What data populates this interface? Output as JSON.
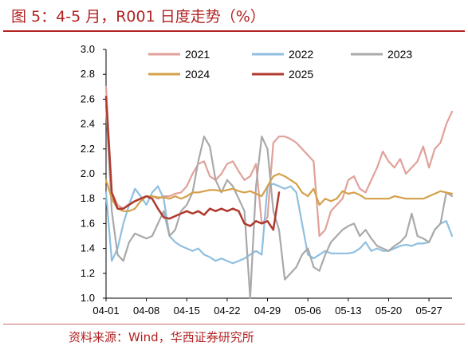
{
  "header": {
    "title": "图 5：4-5 月，R001 日度走势（%）"
  },
  "footer": {
    "source": "资料来源：Wind，华西证券研究所"
  },
  "chart_data": {
    "type": "line",
    "title": "图 5：4-5 月，R001 日度走势（%）",
    "ylim": [
      1.0,
      3.0
    ],
    "yticks": [
      "1.0",
      "1.2",
      "1.4",
      "1.6",
      "1.8",
      "2.0",
      "2.2",
      "2.4",
      "2.6",
      "2.8",
      "3.0"
    ],
    "xticks": [
      "04-01",
      "04-08",
      "04-15",
      "04-22",
      "04-29",
      "05-06",
      "05-13",
      "05-20",
      "05-27"
    ],
    "legend_placement": "top",
    "series": [
      {
        "name": "2021",
        "color": "#e1a19a",
        "x": [
          0,
          1,
          2,
          3,
          4,
          5,
          6,
          7,
          8,
          9,
          10,
          11,
          12,
          13,
          14,
          15,
          16,
          17,
          18,
          19,
          20,
          21,
          22,
          23,
          24,
          25,
          26,
          27,
          28,
          29,
          30,
          31,
          32,
          33,
          34,
          35,
          36,
          37,
          38,
          39,
          40,
          41,
          42,
          43,
          44,
          45,
          46,
          47,
          48,
          49,
          50,
          51,
          52,
          53,
          54,
          55,
          56,
          57,
          58,
          59,
          60
        ],
        "y": [
          2.7,
          1.85,
          1.75,
          1.72,
          1.76,
          1.78,
          1.8,
          1.82,
          1.82,
          1.8,
          1.82,
          1.82,
          1.84,
          1.85,
          1.9,
          2.0,
          2.08,
          2.1,
          1.98,
          1.95,
          2.0,
          2.08,
          2.1,
          2.02,
          1.95,
          1.98,
          2.08,
          1.6,
          1.65,
          2.25,
          2.3,
          2.3,
          2.28,
          2.25,
          2.2,
          2.15,
          2.1,
          1.5,
          1.55,
          1.7,
          1.75,
          1.8,
          1.95,
          1.98,
          1.88,
          1.85,
          1.95,
          2.05,
          2.18,
          2.1,
          2.05,
          2.12,
          2.0,
          2.05,
          2.1,
          2.22,
          2.05,
          2.2,
          2.25,
          2.4,
          2.5
        ]
      },
      {
        "name": "2022",
        "color": "#8fbfe0",
        "x": [
          0,
          1,
          2,
          3,
          4,
          5,
          6,
          7,
          8,
          9,
          10,
          11,
          12,
          13,
          14,
          15,
          16,
          17,
          18,
          19,
          20,
          21,
          22,
          23,
          24,
          25,
          26,
          27,
          28,
          29,
          30,
          31,
          32,
          33,
          34,
          35,
          36,
          37,
          38,
          39,
          40,
          41,
          42,
          43,
          44,
          45,
          46,
          47,
          48,
          49,
          50,
          51,
          52,
          53,
          54,
          55,
          56,
          57,
          58,
          59,
          60
        ],
        "y": [
          1.85,
          1.3,
          1.4,
          1.6,
          1.75,
          1.88,
          1.82,
          1.75,
          1.85,
          1.9,
          1.8,
          1.5,
          1.45,
          1.42,
          1.4,
          1.38,
          1.4,
          1.35,
          1.33,
          1.3,
          1.32,
          1.3,
          1.28,
          1.3,
          1.32,
          1.35,
          1.38,
          1.35,
          1.9,
          1.92,
          1.9,
          1.88,
          1.9,
          1.85,
          1.6,
          1.35,
          1.32,
          1.35,
          1.38,
          1.36,
          1.36,
          1.36,
          1.36,
          1.37,
          1.4,
          1.45,
          1.38,
          1.4,
          1.38,
          1.38,
          1.4,
          1.42,
          1.43,
          1.42,
          1.44,
          1.44,
          1.45,
          1.55,
          1.6,
          1.62,
          1.5
        ]
      },
      {
        "name": "2023",
        "color": "#a9a9a9",
        "x": [
          0,
          1,
          2,
          3,
          4,
          5,
          6,
          7,
          8,
          9,
          10,
          11,
          12,
          13,
          14,
          15,
          16,
          17,
          18,
          19,
          20,
          21,
          22,
          23,
          24,
          25,
          26,
          27,
          28,
          29,
          30,
          31,
          32,
          33,
          34,
          35,
          36,
          37,
          38,
          39,
          40,
          41,
          42,
          43,
          44,
          45,
          46,
          47,
          48,
          49,
          50,
          51,
          52,
          53,
          54,
          55,
          56,
          57,
          58,
          59,
          60
        ],
        "y": [
          2.55,
          1.7,
          1.35,
          1.3,
          1.45,
          1.52,
          1.5,
          1.48,
          1.5,
          1.6,
          1.7,
          1.5,
          1.55,
          1.7,
          1.75,
          1.85,
          2.1,
          2.3,
          2.22,
          1.95,
          1.85,
          1.95,
          1.9,
          1.8,
          1.7,
          1.0,
          1.9,
          2.3,
          2.2,
          1.7,
          1.55,
          1.15,
          1.2,
          1.25,
          1.35,
          1.4,
          1.25,
          1.22,
          1.35,
          1.45,
          1.5,
          1.55,
          1.58,
          1.6,
          1.5,
          1.55,
          1.48,
          1.42,
          1.4,
          1.38,
          1.42,
          1.45,
          1.5,
          1.68,
          1.5,
          1.48,
          1.45,
          1.55,
          1.6,
          1.85,
          1.82
        ]
      },
      {
        "name": "2024",
        "color": "#d4a04a",
        "x": [
          0,
          1,
          2,
          3,
          4,
          5,
          6,
          7,
          8,
          9,
          10,
          11,
          12,
          13,
          14,
          15,
          16,
          17,
          18,
          19,
          20,
          21,
          22,
          23,
          24,
          25,
          26,
          27,
          28,
          29,
          30,
          31,
          32,
          33,
          34,
          35,
          36,
          37,
          38,
          39,
          40,
          41,
          42,
          43,
          44,
          45,
          46,
          47,
          48,
          49,
          50,
          51,
          52,
          53,
          54,
          55,
          56,
          57,
          58,
          59,
          60
        ],
        "y": [
          1.95,
          1.8,
          1.72,
          1.7,
          1.7,
          1.72,
          1.78,
          1.82,
          1.82,
          1.81,
          1.81,
          1.8,
          1.82,
          1.8,
          1.82,
          1.85,
          1.85,
          1.86,
          1.87,
          1.87,
          1.86,
          1.87,
          1.88,
          1.86,
          1.85,
          1.86,
          1.84,
          1.82,
          1.9,
          1.98,
          2.0,
          1.98,
          1.95,
          1.92,
          1.85,
          1.82,
          1.88,
          1.75,
          1.8,
          1.78,
          1.8,
          1.86,
          1.84,
          1.85,
          1.83,
          1.8,
          1.8,
          1.8,
          1.8,
          1.8,
          1.82,
          1.81,
          1.8,
          1.8,
          1.8,
          1.8,
          1.82,
          1.84,
          1.86,
          1.85,
          1.84
        ]
      },
      {
        "name": "2025",
        "color": "#b03a2e",
        "x": [
          0,
          1,
          2,
          3,
          4,
          5,
          6,
          7,
          8,
          9,
          10,
          11,
          12,
          13,
          14,
          15,
          16,
          17,
          18,
          19,
          20,
          21,
          22,
          23,
          24,
          25,
          26,
          27,
          28,
          29,
          30
        ],
        "y": [
          2.62,
          1.85,
          1.72,
          1.72,
          1.75,
          1.78,
          1.8,
          1.82,
          1.8,
          1.72,
          1.65,
          1.64,
          1.66,
          1.68,
          1.7,
          1.68,
          1.7,
          1.67,
          1.72,
          1.7,
          1.72,
          1.7,
          1.72,
          1.7,
          1.6,
          1.58,
          1.62,
          1.6,
          1.62,
          1.55,
          1.85
        ]
      }
    ]
  }
}
